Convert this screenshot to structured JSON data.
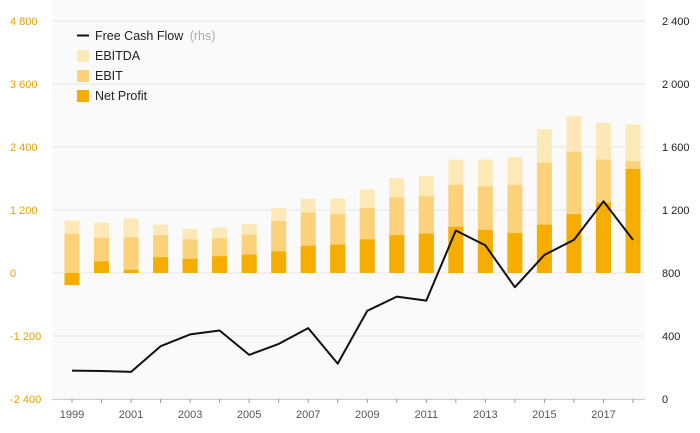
{
  "chart_data": {
    "type": "bar",
    "x": [
      1999,
      2000,
      2001,
      2002,
      2003,
      2004,
      2005,
      2006,
      2007,
      2008,
      2009,
      2010,
      2011,
      2012,
      2013,
      2014,
      2015,
      2016,
      2017,
      2018
    ],
    "x_tick_labels": [
      "1999",
      "2001",
      "2003",
      "2005",
      "2007",
      "2009",
      "2011",
      "2013",
      "2015",
      "2017"
    ],
    "y_left": {
      "range": [
        -2400,
        4800
      ],
      "ticks": [
        -2400,
        -1200,
        0,
        1200,
        2400,
        3600,
        4800
      ],
      "tick_labels": [
        "-2 400",
        "-1 200",
        "0",
        "1 200",
        "2 400",
        "3 600",
        "4 800"
      ]
    },
    "y_right": {
      "range": [
        0,
        2400
      ],
      "ticks": [
        0,
        400,
        800,
        1200,
        1600,
        2000,
        2400
      ],
      "tick_labels": [
        "0",
        "400",
        "800",
        "1 200",
        "1 600",
        "2 000",
        "2 400"
      ]
    },
    "series": [
      {
        "name": "EBITDA",
        "type": "bar",
        "axis": "left",
        "color": "#fde9b8",
        "values": [
          1000,
          960,
          1040,
          920,
          840,
          860,
          930,
          1240,
          1410,
          1420,
          1590,
          1810,
          1850,
          2160,
          2160,
          2210,
          2740,
          2990,
          2860,
          2830
        ]
      },
      {
        "name": "EBIT",
        "type": "bar",
        "axis": "left",
        "color": "#fbd27a",
        "values": [
          750,
          670,
          680,
          720,
          640,
          660,
          730,
          990,
          1150,
          1120,
          1240,
          1440,
          1460,
          1680,
          1650,
          1680,
          2100,
          2310,
          2160,
          2130
        ]
      },
      {
        "name": "Net Profit",
        "type": "bar",
        "axis": "left",
        "color": "#f5ad00",
        "values": [
          -230,
          220,
          60,
          300,
          270,
          320,
          350,
          410,
          520,
          540,
          640,
          720,
          750,
          880,
          820,
          760,
          920,
          1120,
          1340,
          1980
        ]
      },
      {
        "name": "Free Cash Flow",
        "unit_label": "(rhs)",
        "type": "line",
        "axis": "right",
        "color": "#111111",
        "values": [
          180,
          178,
          172,
          335,
          410,
          435,
          280,
          350,
          450,
          225,
          560,
          650,
          625,
          1070,
          975,
          710,
          915,
          1010,
          1255,
          1010
        ]
      }
    ],
    "grid": true,
    "legend_position": "top-left"
  },
  "legend": {
    "fcf_label": "Free Cash Flow",
    "fcf_unit": "(rhs)",
    "ebitda_label": "EBITDA",
    "ebit_label": "EBIT",
    "net_profit_label": "Net Profit"
  },
  "colors": {
    "ebitda": "#fde9b8",
    "ebit": "#fbd27a",
    "net_profit": "#f5ad00",
    "fcf": "#111111",
    "grid": "#e6e6e6",
    "plot_bg": "#fafafa",
    "left_axis_text": "#e8a100"
  }
}
